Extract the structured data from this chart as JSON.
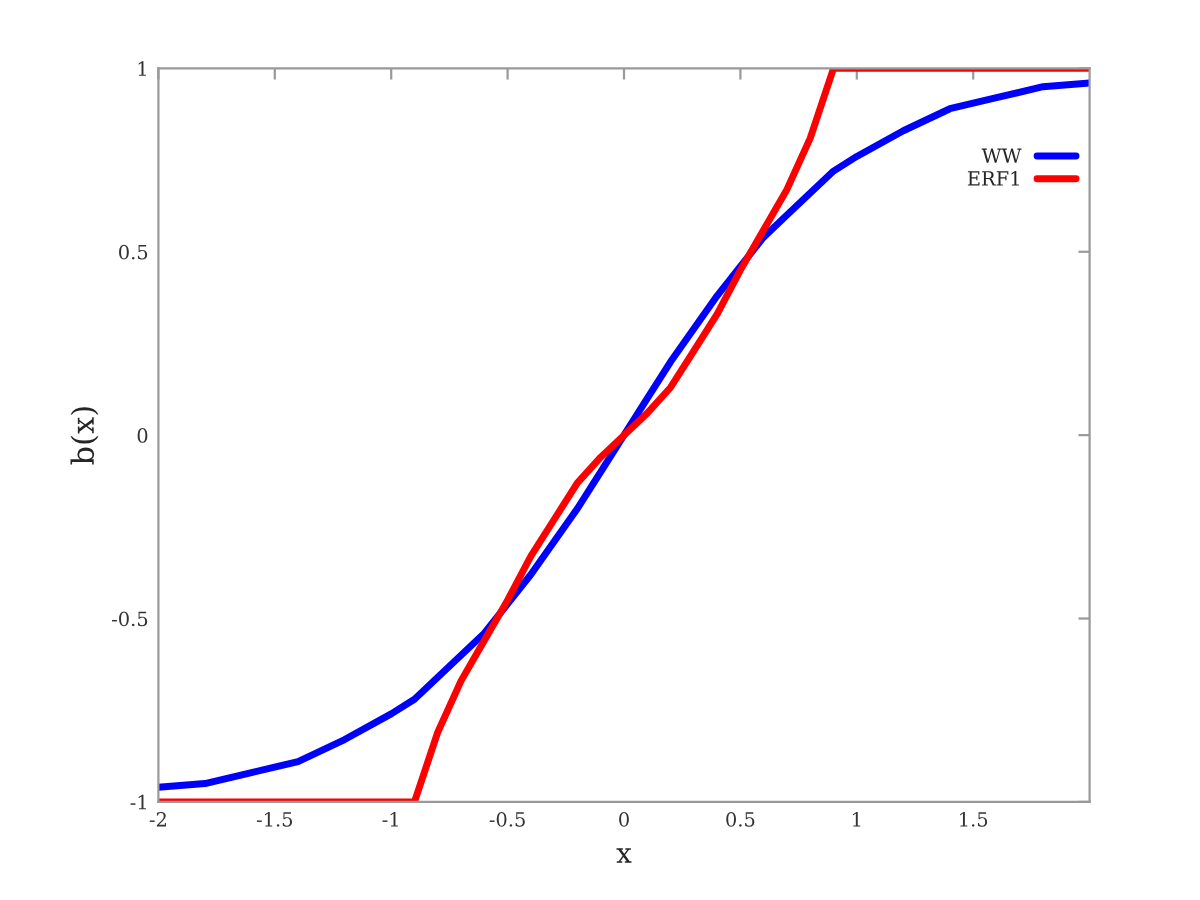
{
  "chart_data": {
    "type": "line",
    "xlabel": "x",
    "ylabel": "b(x)",
    "x": [
      -2,
      -1.8,
      -1.6,
      -1.4,
      -1.2,
      -1,
      -0.9,
      -0.8,
      -0.7,
      -0.6,
      -0.5,
      -0.4,
      -0.3,
      -0.2,
      -0.1,
      0,
      0.1,
      0.2,
      0.3,
      0.4,
      0.5,
      0.6,
      0.7,
      0.8,
      0.9,
      1,
      1.2,
      1.4,
      1.6,
      1.8,
      2
    ],
    "series": [
      {
        "name": "WW",
        "color": "#0000ff",
        "values": [
          -0.96,
          -0.95,
          -0.92,
          -0.89,
          -0.83,
          -0.76,
          -0.72,
          -0.66,
          -0.6,
          -0.54,
          -0.46,
          -0.38,
          -0.29,
          -0.2,
          -0.1,
          0,
          0.1,
          0.2,
          0.29,
          0.38,
          0.46,
          0.54,
          0.6,
          0.66,
          0.72,
          0.76,
          0.83,
          0.89,
          0.92,
          0.95,
          0.96
        ]
      },
      {
        "name": "ERF1",
        "color": "#ff0000",
        "values": [
          -1,
          -1,
          -1,
          -1,
          -1,
          -1,
          -1,
          -0.81,
          -0.67,
          -0.56,
          -0.45,
          -0.33,
          -0.23,
          -0.13,
          -0.06,
          0,
          0.06,
          0.13,
          0.23,
          0.33,
          0.45,
          0.56,
          0.67,
          0.81,
          1,
          1,
          1,
          1,
          1,
          1,
          1
        ]
      }
    ],
    "xlim": [
      -2,
      2
    ],
    "ylim": [
      -1,
      1
    ],
    "xticks": [
      -2,
      -1.5,
      -1,
      -0.5,
      0,
      0.5,
      1,
      1.5
    ],
    "yticks": [
      -1,
      -0.5,
      0,
      0.5,
      1
    ],
    "legend": "top right",
    "grid": false,
    "line_style": "solid"
  }
}
